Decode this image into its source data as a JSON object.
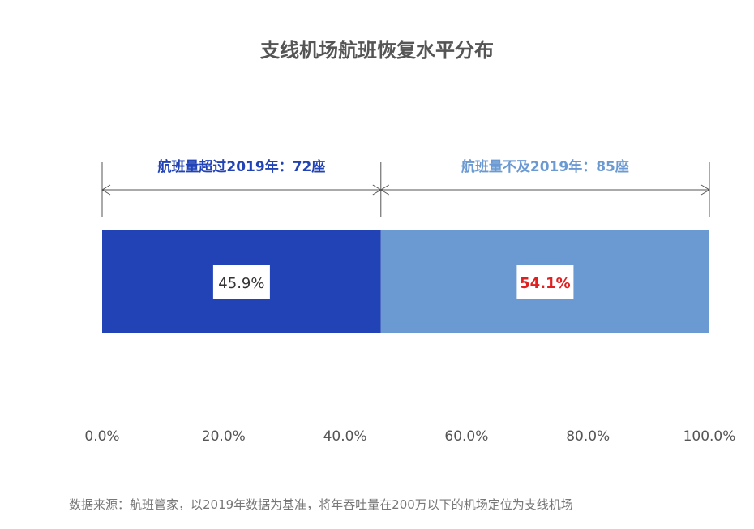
{
  "chart_data": {
    "type": "bar",
    "orientation": "horizontal-stacked",
    "title": "支线机场航班恢复水平分布",
    "xlim": [
      0,
      100
    ],
    "xticks": [
      "0.0%",
      "20.0%",
      "40.0%",
      "60.0%",
      "80.0%",
      "100.0%"
    ],
    "grid": false,
    "series": [
      {
        "value": 45.9,
        "label": "45.9%",
        "color": "#2243b6",
        "label_color": "#333333",
        "bracket_label": "航班量超过2019年：72座",
        "bracket_color": "#2243b6"
      },
      {
        "value": 54.1,
        "label": "54.1%",
        "color": "#6b9ad2",
        "label_color": "#e02020",
        "bracket_label": "航班量不及2019年：85座",
        "bracket_color": "#6b9ad2"
      }
    ],
    "source": "数据来源：航班管家，以2019年数据为基准，将年吞吐量在200万以下的机场定位为支线机场"
  }
}
